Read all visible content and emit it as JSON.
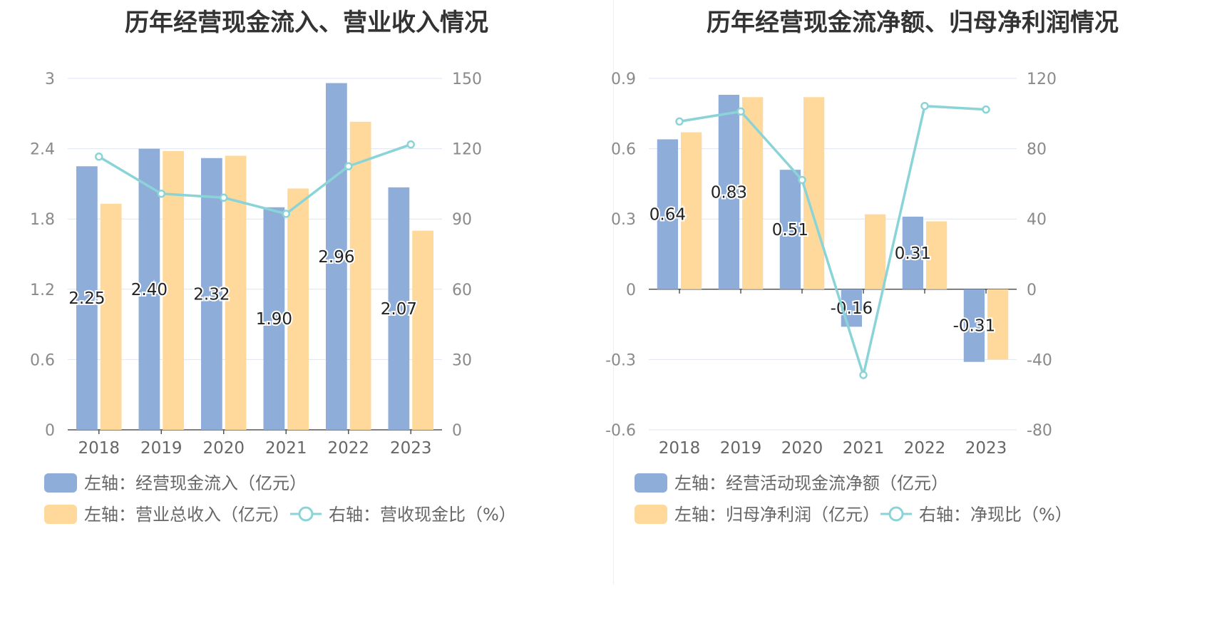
{
  "colors": {
    "bar1": "#8eadd9",
    "bar2": "#ffd99b",
    "line": "#8ad4d8",
    "grid": "#dfe4f0",
    "axis": "#555555"
  },
  "chart_data": [
    {
      "type": "bar",
      "title": "历年经营现金流入、营业收入情况",
      "categories": [
        "2018",
        "2019",
        "2020",
        "2021",
        "2022",
        "2023"
      ],
      "left_axis": {
        "min": 0,
        "max": 3,
        "ticks": [
          "0",
          "0.6",
          "1.2",
          "1.8",
          "2.4",
          "3"
        ]
      },
      "right_axis": {
        "min": 0,
        "max": 150,
        "ticks": [
          "0",
          "30",
          "60",
          "90",
          "120",
          "150"
        ]
      },
      "series": [
        {
          "name": "左轴：经营现金流入（亿元）",
          "type": "bar",
          "axis": "left",
          "values": [
            2.25,
            2.4,
            2.32,
            1.9,
            2.96,
            2.07
          ],
          "labels": [
            "2.25",
            "2.40",
            "2.32",
            "1.90",
            "2.96",
            "2.07"
          ]
        },
        {
          "name": "左轴：营业总收入（亿元）",
          "type": "bar",
          "axis": "left",
          "values": [
            1.93,
            2.38,
            2.34,
            2.06,
            2.63,
            1.7
          ]
        },
        {
          "name": "右轴：营收现金比（%）",
          "type": "line",
          "axis": "right",
          "values": [
            116.6,
            100.8,
            99.1,
            92.2,
            112.5,
            121.8
          ]
        }
      ]
    },
    {
      "type": "bar",
      "title": "历年经营现金流净额、归母净利润情况",
      "categories": [
        "2018",
        "2019",
        "2020",
        "2021",
        "2022",
        "2023"
      ],
      "left_axis": {
        "min": -0.6,
        "max": 0.9,
        "ticks": [
          "-0.6",
          "-0.3",
          "0",
          "0.3",
          "0.6",
          "0.9"
        ]
      },
      "right_axis": {
        "min": -80,
        "max": 120,
        "ticks": [
          "-80",
          "-40",
          "0",
          "40",
          "80",
          "120"
        ]
      },
      "series": [
        {
          "name": "左轴：经营活动现金流净额（亿元）",
          "type": "bar",
          "axis": "left",
          "values": [
            0.64,
            0.83,
            0.51,
            -0.16,
            0.31,
            -0.31
          ],
          "labels": [
            "0.64",
            "0.83",
            "0.51",
            "-0.16",
            "0.31",
            "-0.31"
          ]
        },
        {
          "name": "左轴：归母净利润（亿元）",
          "type": "bar",
          "axis": "left",
          "values": [
            0.67,
            0.82,
            0.82,
            0.32,
            0.29,
            -0.3
          ]
        },
        {
          "name": "右轴：净现比（%）",
          "type": "line",
          "axis": "right",
          "values": [
            95.5,
            101.2,
            62.2,
            -48.8,
            104.3,
            102.3
          ]
        }
      ]
    }
  ]
}
